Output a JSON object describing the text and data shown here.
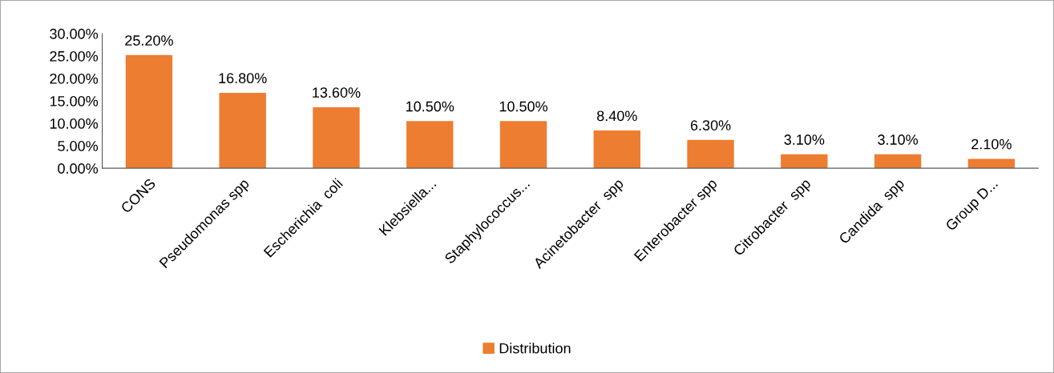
{
  "chart_data": {
    "type": "bar",
    "categories": [
      "CONS",
      "Pseudomonas spp",
      "Escherichia  coli",
      "Klebsiella...",
      "Staphylococcus...",
      "Acinetobacter  spp",
      "Enterobacter spp",
      "Citrobacter  spp",
      "Candida  spp",
      "Group D..."
    ],
    "series": [
      {
        "name": "Distribution",
        "color": "#ed7d31",
        "values": [
          25.2,
          16.8,
          13.6,
          10.5,
          10.5,
          8.4,
          6.3,
          3.1,
          3.1,
          2.1
        ],
        "value_labels": [
          "25.20%",
          "16.80%",
          "13.60%",
          "10.50%",
          "10.50%",
          "8.40%",
          "6.30%",
          "3.10%",
          "3.10%",
          "2.10%"
        ]
      }
    ],
    "ylim": [
      0,
      30
    ],
    "yticks": [
      {
        "value": 0,
        "label": "0.00%"
      },
      {
        "value": 5,
        "label": "5.00%"
      },
      {
        "value": 10,
        "label": "10.00%"
      },
      {
        "value": 15,
        "label": "15.00%"
      },
      {
        "value": 20,
        "label": "20.00%"
      },
      {
        "value": 25,
        "label": "25.00%"
      },
      {
        "value": 30,
        "label": "30.00%"
      }
    ],
    "grid": false,
    "legend": "bottom"
  }
}
